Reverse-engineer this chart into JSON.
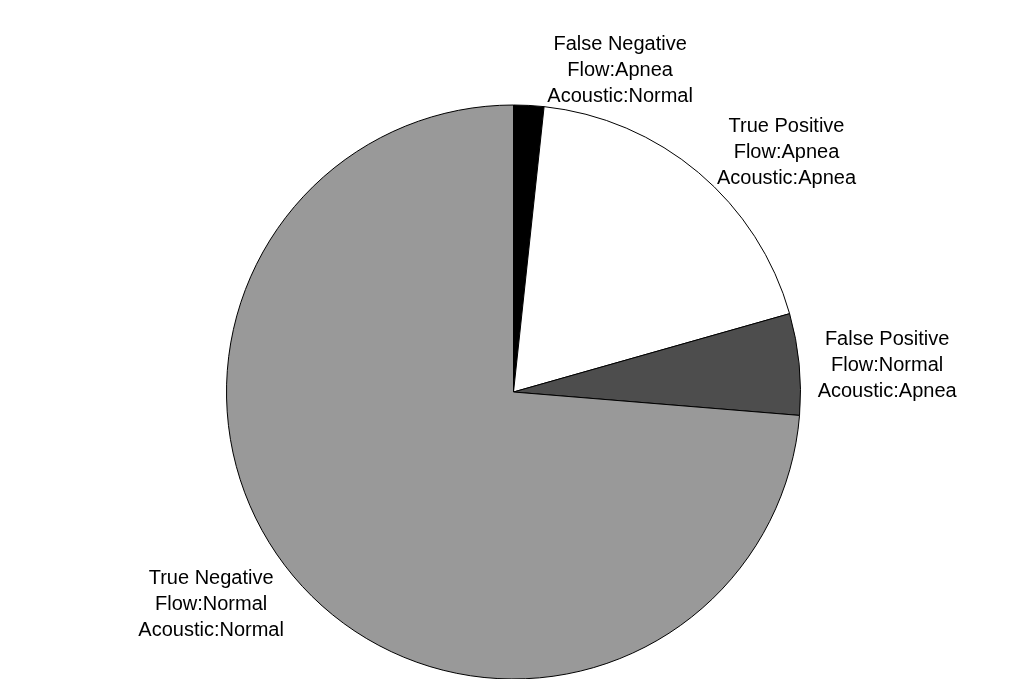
{
  "chart_data": {
    "type": "pie",
    "categories": [
      "False Negative\nFlow:Apnea\nAcoustic:Normal",
      "True Positive\nFlow:Apnea\nAcoustic:Apnea",
      "False Positive\nFlow:Normal\nAcoustic:Apnea",
      "True Negative\nFlow:Normal\nAcoustic:Normal"
    ],
    "values": [
      1.7,
      18.9,
      5.7,
      73.7
    ],
    "colors": [
      "#000000",
      "#ffffff",
      "#4d4d4d",
      "#999999"
    ],
    "legend": false
  }
}
